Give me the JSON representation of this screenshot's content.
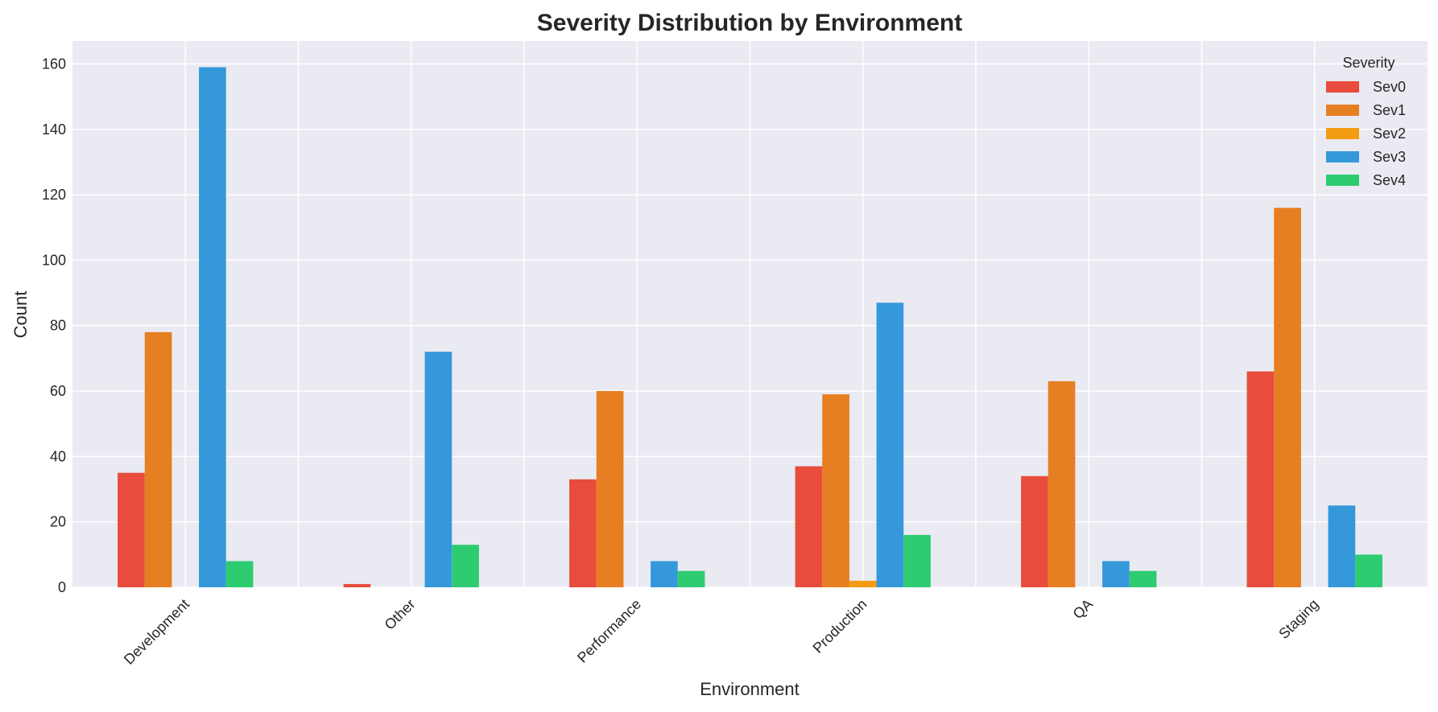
{
  "chart_data": {
    "type": "bar",
    "title": "Severity Distribution by Environment",
    "xlabel": "Environment",
    "ylabel": "Count",
    "categories": [
      "Development",
      "Other",
      "Performance",
      "Production",
      "QA",
      "Staging"
    ],
    "series": [
      {
        "name": "Sev0",
        "color": "#e74c3c",
        "values": [
          35,
          1,
          33,
          37,
          34,
          66
        ]
      },
      {
        "name": "Sev1",
        "color": "#e67e22",
        "values": [
          78,
          0,
          60,
          59,
          63,
          116
        ]
      },
      {
        "name": "Sev2",
        "color": "#f39c12",
        "values": [
          0,
          0,
          0,
          2,
          0,
          0
        ]
      },
      {
        "name": "Sev3",
        "color": "#3498db",
        "values": [
          159,
          72,
          8,
          87,
          8,
          25
        ]
      },
      {
        "name": "Sev4",
        "color": "#2ecc71",
        "values": [
          8,
          13,
          5,
          16,
          5,
          10
        ]
      }
    ],
    "ylim": [
      0,
      167
    ],
    "yticks": [
      0,
      20,
      40,
      60,
      80,
      100,
      120,
      140,
      160
    ],
    "grid": true,
    "legend": {
      "title": "Severity",
      "placement": "top-right"
    }
  }
}
